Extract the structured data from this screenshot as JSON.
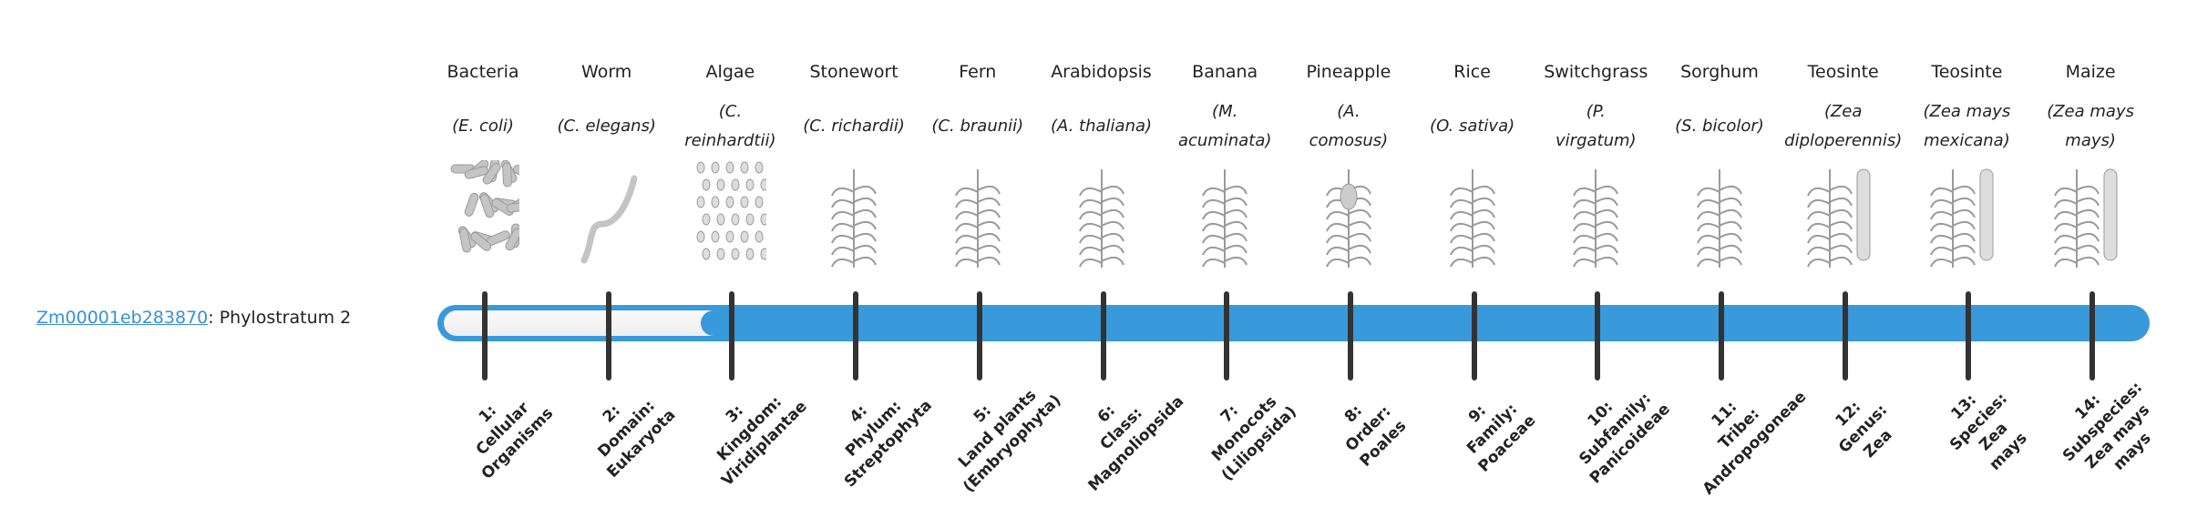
{
  "gene": {
    "id": "Zm00001eb283870",
    "suffix": ": Phylostratum 2"
  },
  "chart_data": {
    "type": "progress-timeline",
    "current_stratum": 2,
    "total_strata": 14,
    "colors": {
      "bar": "#3899db",
      "unfilled": "#f3f3f3",
      "tick": "#333333",
      "link": "#3a8fd8"
    },
    "organisms": [
      {
        "common": "Bacteria",
        "species": [
          "(E. coli)"
        ],
        "icon": "bacteria-illustration"
      },
      {
        "common": "Worm",
        "species": [
          "(C. elegans)"
        ],
        "icon": "worm-illustration"
      },
      {
        "common": "Algae",
        "species": [
          "(C.",
          "reinhardtii)"
        ],
        "icon": "algae-illustration"
      },
      {
        "common": "Stonewort",
        "species": [
          "(C. richardii)"
        ],
        "icon": "stonewort-illustration"
      },
      {
        "common": "Fern",
        "species": [
          "(C. braunii)"
        ],
        "icon": "fern-illustration"
      },
      {
        "common": "Arabidopsis",
        "species": [
          "(A. thaliana)"
        ],
        "icon": "arabidopsis-illustration"
      },
      {
        "common": "Banana",
        "species": [
          "(M.",
          "acuminata)"
        ],
        "icon": "banana-illustration"
      },
      {
        "common": "Pineapple",
        "species": [
          "(A.",
          "comosus)"
        ],
        "icon": "pineapple-illustration"
      },
      {
        "common": "Rice",
        "species": [
          "(O. sativa)"
        ],
        "icon": "rice-illustration"
      },
      {
        "common": "Switchgrass",
        "species": [
          "(P.",
          "virgatum)"
        ],
        "icon": "switchgrass-illustration"
      },
      {
        "common": "Sorghum",
        "species": [
          "(S. bicolor)"
        ],
        "icon": "sorghum-illustration"
      },
      {
        "common": "Teosinte",
        "species": [
          "(Zea",
          "diploperennis)"
        ],
        "icon": "teosinte-illustration"
      },
      {
        "common": "Teosinte",
        "species": [
          "(Zea mays",
          "mexicana)"
        ],
        "icon": "teosinte-illustration"
      },
      {
        "common": "Maize",
        "species": [
          "(Zea mays",
          "mays)"
        ],
        "icon": "maize-illustration"
      }
    ],
    "strata": [
      [
        "1:",
        "Cellular",
        "Organisms"
      ],
      [
        "2:",
        "Domain:",
        "Eukaryota"
      ],
      [
        "3:",
        "Kingdom:",
        "Viridiplantae"
      ],
      [
        "4:",
        "Phylum:",
        "Streptophyta"
      ],
      [
        "5:",
        "Land plants",
        "(Embryophyta)"
      ],
      [
        "6:",
        "Class:",
        "Magnoliopsida"
      ],
      [
        "7:",
        "Monocots",
        "(Liliopsida)"
      ],
      [
        "8:",
        "Order:",
        "Poales"
      ],
      [
        "9:",
        "Family:",
        "Poaceae"
      ],
      [
        "10:",
        "Subfamily:",
        "Panicoideae"
      ],
      [
        "11:",
        "Tribe:",
        "Andropogoneae"
      ],
      [
        "12:",
        "Genus:",
        "Zea"
      ],
      [
        "13:",
        "Species:",
        "Zea",
        "mays"
      ],
      [
        "14:",
        "Subspecies:",
        "Zea mays",
        "mays"
      ]
    ]
  }
}
